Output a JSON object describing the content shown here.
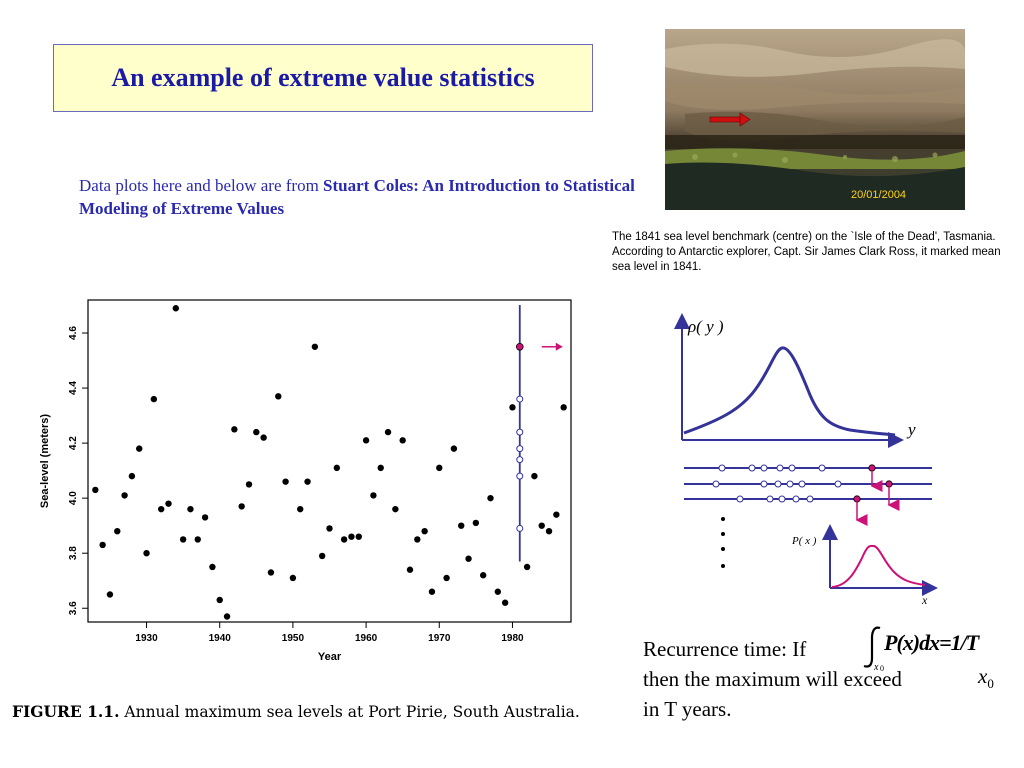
{
  "slide": {
    "title": "An example of extreme value statistics",
    "source_prefix": "Data plots here and below are from ",
    "source_book": "Stuart Coles: An Introduction to Statistical Modeling of  Extreme Values"
  },
  "photo": {
    "date_stamp": "20/01/2004",
    "caption": "The 1841 sea level benchmark (centre) on the `Isle of the Dead', Tasmania.  According to Antarctic explorer, Capt. Sir James Clark Ross, it marked mean sea level in 1841."
  },
  "figure": {
    "caption_label": "FIGURE 1.1.",
    "caption_text": " Annual maximum sea levels at Port Pirie, South Australia."
  },
  "diagram": {
    "density_label": "ρ( y )",
    "y_axis_var": "y",
    "cdf_label": "P( x )",
    "x_axis_var": "x"
  },
  "recurrence": {
    "line1": "Recurrence time: If",
    "line2": "then the maximum will exceed",
    "line3": "in T years.",
    "formula": "∫x₀ P(x) dx = 1/T",
    "x0_var": "x",
    "x0_sub": "0"
  },
  "colors": {
    "title_text": "#1a1aa6",
    "title_box_fill": "#ffffcc",
    "curve_blue": "#33339a",
    "highlight_magenta": "#cc1177"
  },
  "chart_data": {
    "type": "scatter",
    "title": "",
    "xlabel": "Year",
    "ylabel": "Sea-level (meters)",
    "xlim": [
      1922,
      1988
    ],
    "ylim": [
      3.55,
      4.72
    ],
    "xticks": [
      1930,
      1940,
      1950,
      1960,
      1970,
      1980
    ],
    "yticks": [
      3.6,
      3.8,
      4.0,
      4.2,
      4.4,
      4.6
    ],
    "points": [
      [
        1923,
        4.03
      ],
      [
        1924,
        3.83
      ],
      [
        1925,
        3.65
      ],
      [
        1926,
        3.88
      ],
      [
        1927,
        4.01
      ],
      [
        1928,
        4.08
      ],
      [
        1929,
        4.18
      ],
      [
        1930,
        3.8
      ],
      [
        1931,
        4.36
      ],
      [
        1932,
        3.96
      ],
      [
        1933,
        3.98
      ],
      [
        1934,
        4.69
      ],
      [
        1935,
        3.85
      ],
      [
        1936,
        3.96
      ],
      [
        1937,
        3.85
      ],
      [
        1938,
        3.93
      ],
      [
        1939,
        3.75
      ],
      [
        1940,
        3.63
      ],
      [
        1941,
        3.57
      ],
      [
        1942,
        4.25
      ],
      [
        1943,
        3.97
      ],
      [
        1944,
        4.05
      ],
      [
        1945,
        4.24
      ],
      [
        1946,
        4.22
      ],
      [
        1947,
        3.73
      ],
      [
        1948,
        4.37
      ],
      [
        1949,
        4.06
      ],
      [
        1950,
        3.71
      ],
      [
        1951,
        3.96
      ],
      [
        1952,
        4.06
      ],
      [
        1953,
        4.55
      ],
      [
        1954,
        3.79
      ],
      [
        1955,
        3.89
      ],
      [
        1956,
        4.11
      ],
      [
        1957,
        3.85
      ],
      [
        1958,
        3.86
      ],
      [
        1959,
        3.86
      ],
      [
        1960,
        4.21
      ],
      [
        1961,
        4.01
      ],
      [
        1962,
        4.11
      ],
      [
        1963,
        4.24
      ],
      [
        1964,
        3.96
      ],
      [
        1965,
        4.21
      ],
      [
        1966,
        3.74
      ],
      [
        1967,
        3.85
      ],
      [
        1968,
        3.88
      ],
      [
        1969,
        3.66
      ],
      [
        1970,
        4.11
      ],
      [
        1971,
        3.71
      ],
      [
        1972,
        4.18
      ],
      [
        1973,
        3.9
      ],
      [
        1974,
        3.78
      ],
      [
        1975,
        3.91
      ],
      [
        1976,
        3.72
      ],
      [
        1977,
        4.0
      ],
      [
        1978,
        3.66
      ],
      [
        1979,
        3.62
      ],
      [
        1980,
        4.33
      ],
      [
        1982,
        3.75
      ],
      [
        1983,
        4.08
      ],
      [
        1984,
        3.9
      ],
      [
        1985,
        3.88
      ],
      [
        1986,
        3.94
      ],
      [
        1987,
        4.33
      ]
    ],
    "highlight": {
      "year": 1981,
      "max_value": 4.55,
      "column_values": [
        4.36,
        4.24,
        4.18,
        4.14,
        4.08,
        3.89
      ]
    },
    "grid": false,
    "legend": "none"
  }
}
